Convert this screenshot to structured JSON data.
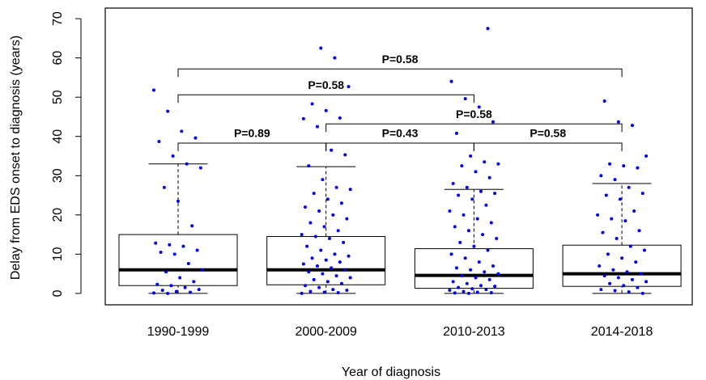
{
  "chart_data": {
    "type": "box",
    "x_label": "Year of diagnosis",
    "y_label": "Delay from EDS onset to diagnosis (years)",
    "categories": [
      "1990-1999",
      "2000-2009",
      "2010-2013",
      "2014-2018"
    ],
    "boxes": [
      {
        "whislo": 0,
        "q1": 2,
        "med": 6,
        "q3": 15,
        "whishi": 33
      },
      {
        "whislo": 0,
        "q1": 2.2,
        "med": 6,
        "q3": 14.5,
        "whishi": 32.3
      },
      {
        "whislo": 0,
        "q1": 1.3,
        "med": 4.6,
        "q3": 11.4,
        "whishi": 26.5
      },
      {
        "whislo": 0,
        "q1": 1.8,
        "med": 5,
        "q3": 12.3,
        "whishi": 28
      }
    ],
    "points_color": "#0000ee",
    "points": [
      [
        51.8,
        46.4,
        41.3,
        39.6,
        38.7,
        35,
        33,
        32,
        27,
        23.5,
        17.2,
        12.8,
        12.4,
        12,
        11,
        10.5,
        10,
        7.6,
        6,
        5.5,
        4,
        3,
        2.3,
        2,
        1.5,
        1,
        0.8,
        0.5,
        0.3,
        0.1,
        0
      ],
      [
        62.5,
        60,
        52.7,
        48.3,
        46.6,
        44.7,
        44.5,
        42.5,
        36.5,
        35.3,
        32.5,
        29,
        27,
        26.5,
        25.5,
        24,
        23,
        22,
        21,
        20,
        19,
        18,
        17,
        16,
        15,
        14.5,
        14,
        13,
        12,
        11,
        10,
        9.5,
        9,
        8.5,
        8,
        7.5,
        7,
        6.5,
        6,
        5.5,
        5,
        4.5,
        4,
        3.5,
        3,
        2.5,
        2,
        1.5,
        1,
        0.8,
        0.5,
        0.3,
        0.2,
        0
      ],
      [
        67.5,
        54,
        49.6,
        47.5,
        43.7,
        40.8,
        35,
        33.5,
        33,
        32.5,
        31,
        29.5,
        28,
        27,
        26,
        25.5,
        25,
        24,
        22.5,
        21,
        20,
        19,
        18,
        17,
        16,
        15,
        14,
        13,
        12,
        11,
        10,
        9,
        8,
        7,
        6.5,
        6,
        5.5,
        5,
        4.5,
        4,
        3.5,
        3,
        2.5,
        2,
        1.8,
        1.5,
        1.2,
        1,
        0.8,
        0.5,
        0.3,
        0.2,
        0.1,
        0
      ],
      [
        49,
        43.7,
        42.8,
        35,
        33,
        32.5,
        32,
        30,
        29,
        27,
        25.5,
        25,
        24,
        21,
        20,
        19,
        18.5,
        16,
        15.5,
        14,
        12,
        11,
        10,
        9,
        8,
        7,
        6,
        5.5,
        5,
        4.5,
        4,
        3.5,
        3,
        2.5,
        2,
        1.5,
        1,
        0.7,
        0.4,
        0
      ]
    ],
    "comparisons": [
      {
        "from": 0,
        "to": 3,
        "y": 57.2,
        "label": "P=0.58"
      },
      {
        "from": 0,
        "to": 2,
        "y": 50.6,
        "label": "P=0.58"
      },
      {
        "from": 1,
        "to": 3,
        "y": 43.2,
        "label": "P=0.58"
      },
      {
        "from": 0,
        "to": 1,
        "y": 38.3,
        "label": "P=0.89"
      },
      {
        "from": 1,
        "to": 2,
        "y": 38.3,
        "label": "P=0.43"
      },
      {
        "from": 2,
        "to": 3,
        "y": 38.3,
        "label": "P=0.58"
      }
    ],
    "ylim": [
      -2.9,
      72.7
    ],
    "yticks": [
      0,
      10,
      20,
      30,
      40,
      50,
      60,
      70
    ]
  }
}
